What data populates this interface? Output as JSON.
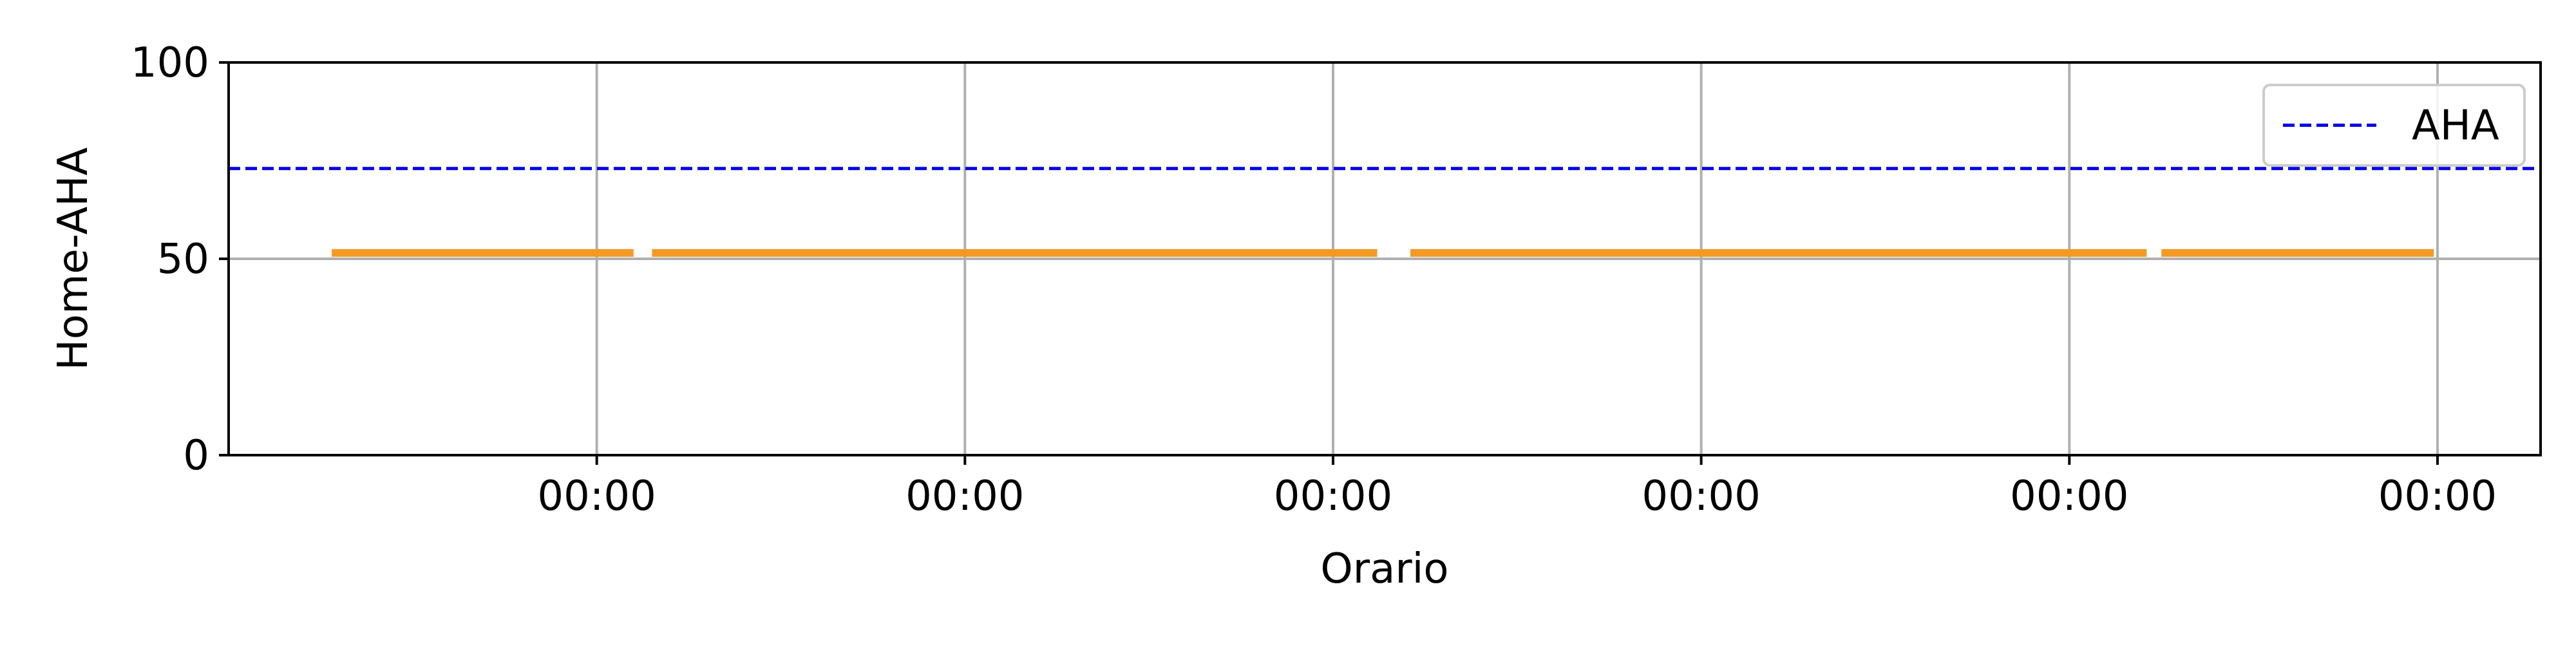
{
  "chart_data": {
    "type": "line",
    "title": "",
    "xlabel": "Orario",
    "ylabel": "Home-AHA",
    "ylim": [
      0,
      100
    ],
    "yticks": [
      0,
      50,
      100
    ],
    "xlim": [
      -1,
      5.28
    ],
    "xticks": [
      0,
      1,
      2,
      3,
      4,
      5
    ],
    "xtick_labels": [
      "00:00",
      "00:00",
      "00:00",
      "00:00",
      "00:00",
      "00:00"
    ],
    "grid": true,
    "legend_position": "top-right",
    "series": [
      {
        "name": "",
        "color": "#f39a26",
        "style": "solid",
        "segments": [
          {
            "x": [
              -0.72,
              0.1
            ],
            "y": [
              51.5,
              51.5
            ]
          },
          {
            "x": [
              0.15,
              2.12
            ],
            "y": [
              51.5,
              51.5
            ]
          },
          {
            "x": [
              2.21,
              4.21
            ],
            "y": [
              51.5,
              51.5
            ]
          },
          {
            "x": [
              4.25,
              4.99
            ],
            "y": [
              51.5,
              51.5
            ]
          }
        ]
      },
      {
        "name": "AHA",
        "color": "#0000ee",
        "style": "dashed",
        "segments": [
          {
            "x": [
              -1,
              5.28
            ],
            "y": [
              73,
              73
            ]
          }
        ]
      }
    ],
    "legend": [
      {
        "label": "AHA",
        "series": "AHA"
      }
    ]
  }
}
